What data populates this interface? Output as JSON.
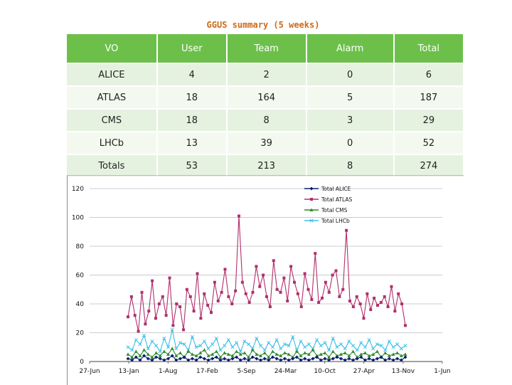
{
  "title": "GGUS summary (5 weeks)",
  "table": {
    "headers": [
      "VO",
      "User",
      "Team",
      "Alarm",
      "Total"
    ],
    "rows": [
      [
        "ALICE",
        "4",
        "2",
        "0",
        "6"
      ],
      [
        "ATLAS",
        "18",
        "164",
        "5",
        "187"
      ],
      [
        "CMS",
        "18",
        "8",
        "3",
        "29"
      ],
      [
        "LHCb",
        "13",
        "39",
        "0",
        "52"
      ],
      [
        "Totals",
        "53",
        "213",
        "8",
        "274"
      ]
    ]
  },
  "chart_data": {
    "type": "line",
    "ylim": [
      0,
      120
    ],
    "yticks": [
      0,
      20,
      40,
      60,
      80,
      100,
      120
    ],
    "x_tick_labels": [
      "27-Jun",
      "13-Jan",
      "1-Aug",
      "17-Feb",
      "5-Sep",
      "24-Mar",
      "10-Oct",
      "27-Apr",
      "13-Nov",
      "1-Jun"
    ],
    "grid": "horizontal",
    "legend_position": "top-right",
    "colors": {
      "Total ALICE": "#0a1f6e",
      "Total ATLAS": "#b0306c",
      "Total CMS": "#2e8b2e",
      "Total LHCb": "#3bbfe8"
    },
    "series": [
      {
        "name": "Total ALICE",
        "values": [
          2,
          1,
          3,
          1,
          4,
          2,
          1,
          3,
          2,
          1,
          2,
          4,
          1,
          2,
          3,
          1,
          2,
          1,
          3,
          2,
          1,
          2,
          3,
          1,
          2,
          1,
          2,
          3,
          1,
          2,
          1,
          3,
          2,
          1,
          2,
          1,
          3,
          2,
          1,
          2,
          1,
          2,
          3,
          1,
          2,
          1,
          2,
          3,
          1,
          2,
          1,
          2,
          3,
          2,
          1,
          2,
          1,
          2,
          3,
          1,
          2,
          1,
          2,
          3,
          1,
          2,
          1,
          2,
          1,
          3
        ]
      },
      {
        "name": "Total ATLAS",
        "values": [
          31,
          45,
          32,
          21,
          48,
          26,
          35,
          56,
          30,
          40,
          45,
          32,
          58,
          25,
          40,
          38,
          22,
          50,
          45,
          35,
          61,
          30,
          47,
          39,
          34,
          55,
          42,
          48,
          64,
          45,
          40,
          49,
          101,
          55,
          47,
          41,
          48,
          66,
          52,
          60,
          45,
          38,
          70,
          50,
          48,
          58,
          42,
          66,
          55,
          47,
          38,
          61,
          50,
          43,
          75,
          41,
          44,
          55,
          48,
          60,
          63,
          45,
          50,
          91,
          42,
          38,
          45,
          40,
          30,
          47,
          36,
          44,
          39,
          41,
          45,
          38,
          52,
          35,
          47,
          40,
          25
        ]
      },
      {
        "name": "Total CMS",
        "values": [
          5,
          3,
          7,
          4,
          8,
          5,
          3,
          6,
          4,
          7,
          5,
          9,
          4,
          6,
          3,
          7,
          5,
          4,
          6,
          8,
          4,
          5,
          7,
          3,
          6,
          5,
          4,
          7,
          5,
          6,
          3,
          8,
          5,
          4,
          6,
          3,
          7,
          5,
          4,
          6,
          5,
          3,
          7,
          4,
          6,
          5,
          8,
          4,
          5,
          6,
          3,
          7,
          4,
          5,
          6,
          4,
          7,
          3,
          5,
          6,
          4,
          5,
          7,
          3,
          6,
          4,
          5,
          6,
          4,
          5
        ]
      },
      {
        "name": "Total LHCb",
        "values": [
          10,
          8,
          15,
          12,
          18,
          9,
          14,
          11,
          7,
          16,
          10,
          22,
          9,
          13,
          12,
          8,
          17,
          10,
          11,
          14,
          9,
          12,
          16,
          8,
          11,
          15,
          10,
          13,
          7,
          14,
          12,
          9,
          16,
          11,
          8,
          13,
          10,
          15,
          9,
          12,
          11,
          17,
          8,
          14,
          10,
          12,
          9,
          15,
          11,
          13,
          8,
          16,
          10,
          12,
          9,
          14,
          11,
          8,
          13,
          10,
          15,
          9,
          12,
          11,
          8,
          14,
          10,
          12,
          9,
          11
        ]
      }
    ]
  }
}
